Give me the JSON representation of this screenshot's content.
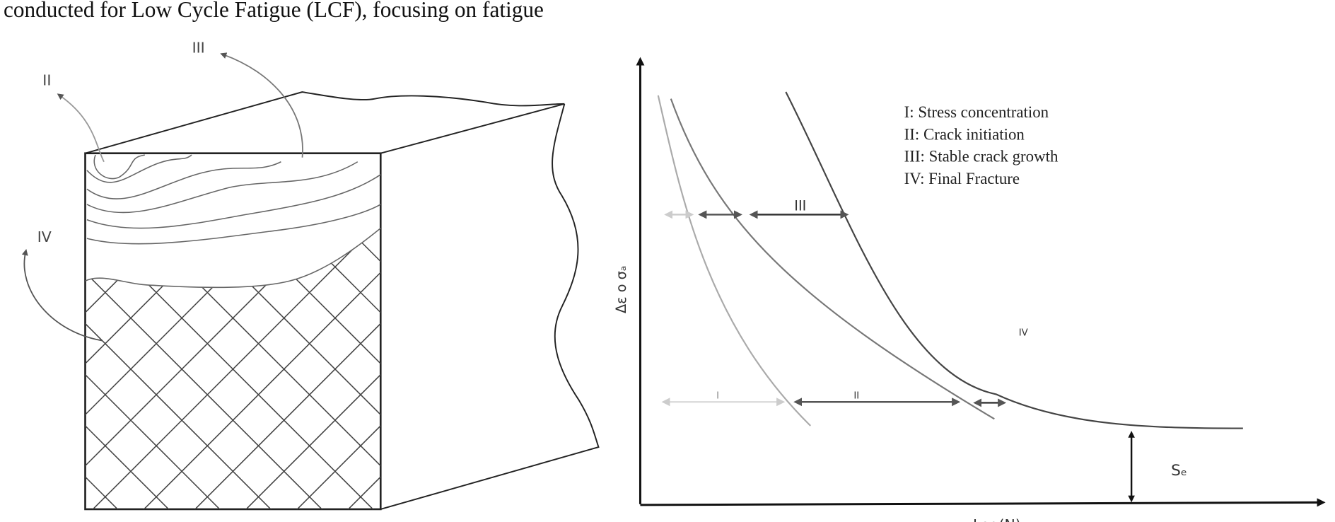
{
  "caption": "conducted for Low Cycle Fatigue (LCF), focusing on fatigue",
  "specimen": {
    "labels": [
      "II",
      "III",
      "IV"
    ]
  },
  "graph": {
    "legend": [
      "I: Stress concentration",
      "II: Crack initiation",
      "III: Stable crack growth",
      "IV: Final Fracture"
    ],
    "region_labels": [
      "III",
      "I",
      "II",
      "IV"
    ],
    "y_axis_label": "Δε o σₐ",
    "x_axis_label": "Log(N)",
    "endurance_label": "Sₑ"
  }
}
